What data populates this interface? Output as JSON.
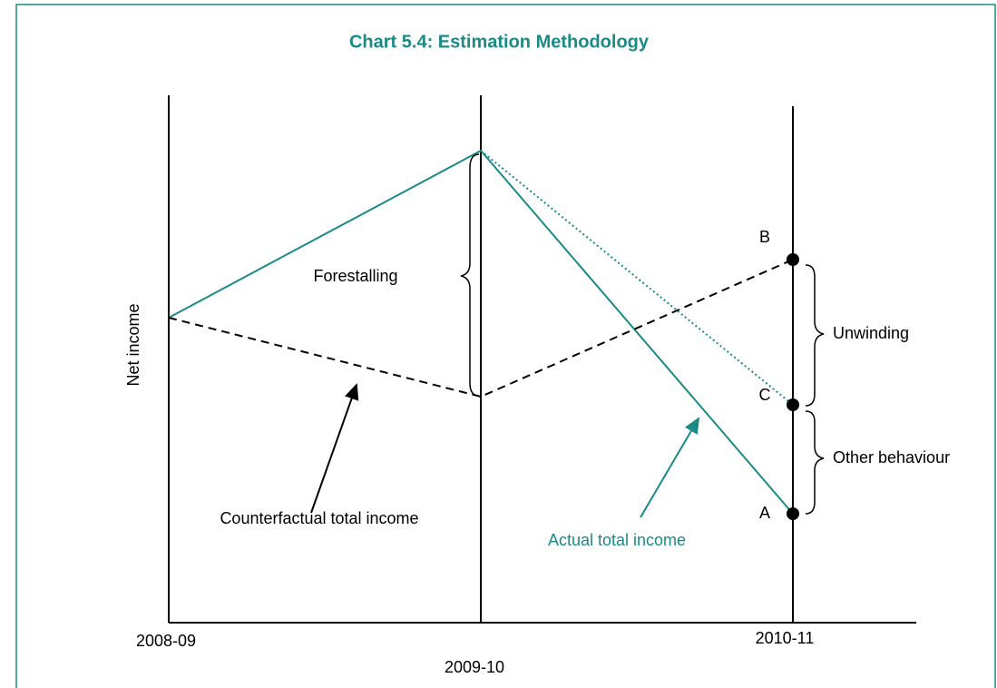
{
  "title": "Chart 5.4: Estimation Methodology",
  "y_axis_label": "Net income",
  "x_labels": [
    "2008-09",
    "2009-10",
    "2010-11"
  ],
  "annotations": {
    "forestalling": "Forestalling",
    "counterfactual": "Counterfactual total income",
    "actual": "Actual total income",
    "unwinding": "Unwinding",
    "other": "Other behaviour"
  },
  "points": [
    "B",
    "C",
    "A"
  ]
}
